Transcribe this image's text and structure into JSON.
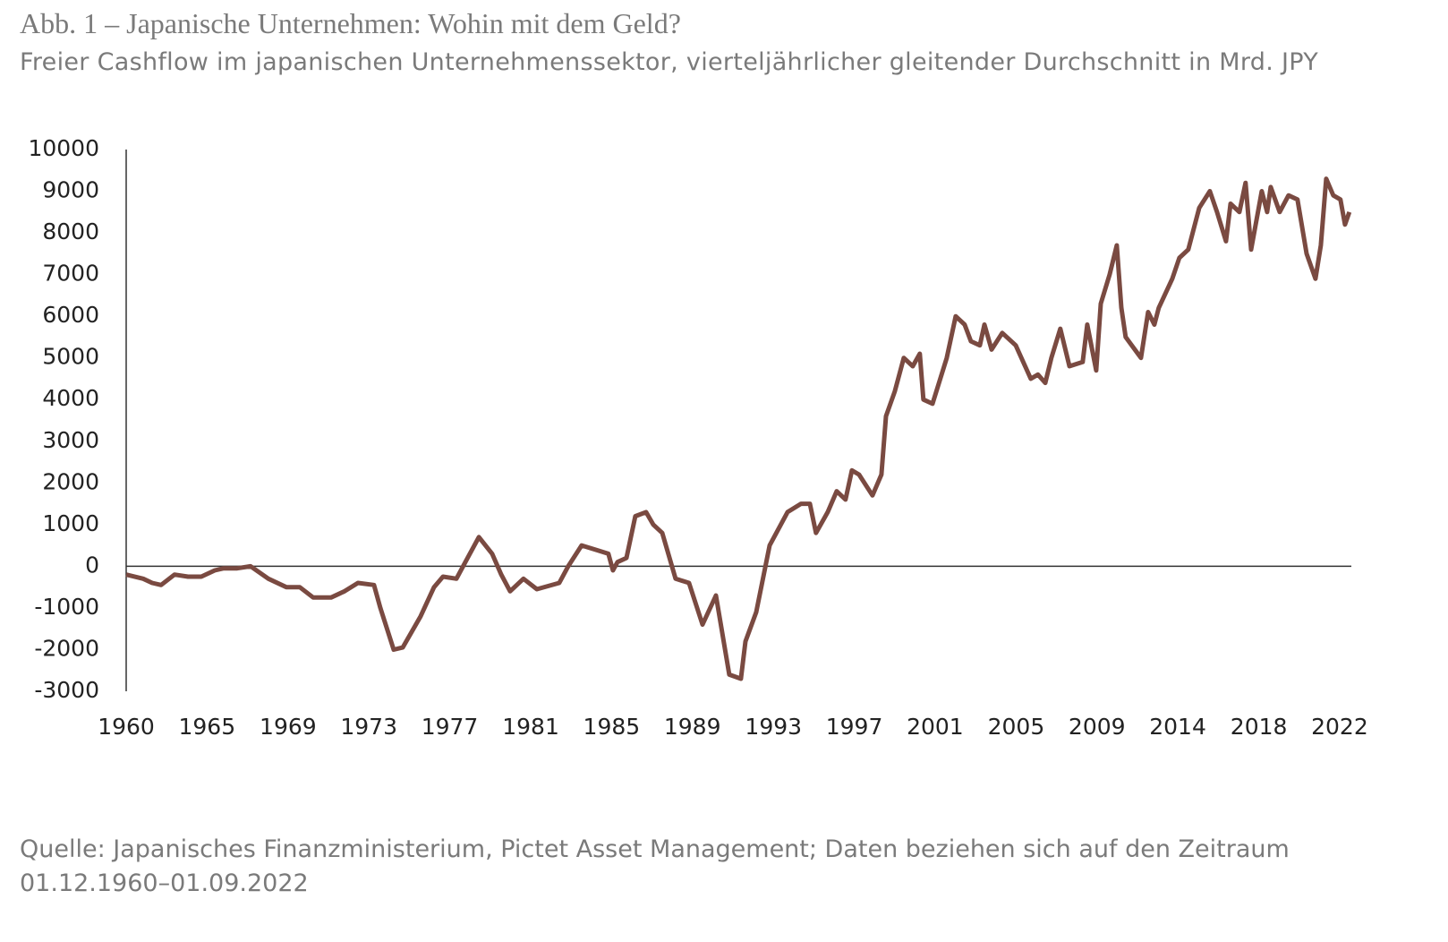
{
  "chart_data": {
    "type": "line",
    "title": "Abb. 1 – Japanische Unternehmen: Wohin mit dem Geld?",
    "subtitle": "Freier Cashflow im japanischen Unternehmenssektor, vierteljährlicher gleitender Durchschnitt in Mrd. JPY",
    "footnote": "Quelle: Japanisches Finanzministerium, Pictet Asset Management; Daten beziehen sich auf den Zeitraum 01.12.1960–01.09.2022",
    "color": "#7a4a41",
    "x": [
      1960.75,
      1961.61,
      1962.06,
      1962.51,
      1963.19,
      1963.87,
      1964.54,
      1965.22,
      1965.67,
      1966.35,
      1967.03,
      1967.93,
      1968.83,
      1969.51,
      1970.19,
      1971.09,
      1971.77,
      1972.45,
      1973.26,
      1973.58,
      1974.25,
      1974.71,
      1975.61,
      1976.29,
      1976.74,
      1977.42,
      1977.87,
      1978.55,
      1979.22,
      1979.68,
      1980.13,
      1980.8,
      1981.48,
      1982.61,
      1983.06,
      1983.74,
      1984.42,
      1985.09,
      1985.32,
      1985.55,
      1986.0,
      1986.45,
      1986.99,
      1987.35,
      1987.81,
      1988.48,
      1989.16,
      1989.84,
      1990.52,
      1991.19,
      1991.78,
      1992.01,
      1992.55,
      1993.23,
      1994.13,
      1994.81,
      1995.26,
      1995.57,
      1996.16,
      1996.61,
      1997.06,
      1997.38,
      1997.74,
      1998.42,
      1998.87,
      1999.1,
      1999.55,
      2000.0,
      2000.45,
      2000.81,
      2000.99,
      2001.45,
      2002.17,
      2002.62,
      2003.07,
      2003.39,
      2003.84,
      2004.07,
      2004.43,
      2004.97,
      2005.65,
      2006.41,
      2006.77,
      2007.14,
      2007.45,
      2007.9,
      2008.36,
      2009.03,
      2009.26,
      2009.71,
      2009.94,
      2010.39,
      2010.75,
      2010.98,
      2011.2,
      2011.97,
      2012.33,
      2012.65,
      2012.87,
      2013.55,
      2013.91,
      2014.36,
      2014.91,
      2015.45,
      2015.81,
      2016.26,
      2016.49,
      2016.94,
      2017.25,
      2017.53,
      2018.07,
      2018.34,
      2018.52,
      2018.97,
      2019.42,
      2019.87,
      2020.33,
      2020.78,
      2021.05,
      2021.32,
      2021.68,
      2022.04,
      2022.27,
      2022.49
    ],
    "values": [
      -200,
      -300,
      -400,
      -450,
      -200,
      -250,
      -250,
      -100,
      -50,
      -50,
      0,
      -300,
      -500,
      -500,
      -750,
      -750,
      -600,
      -400,
      -450,
      -1000,
      -2000,
      -1950,
      -1200,
      -500,
      -250,
      -300,
      100,
      700,
      300,
      -200,
      -600,
      -300,
      -550,
      -400,
      0,
      500,
      400,
      300,
      -100,
      100,
      200,
      1200,
      1300,
      1000,
      800,
      -300,
      -400,
      -1400,
      -700,
      -2600,
      -2700,
      -1800,
      -1100,
      500,
      1300,
      1500,
      1500,
      800,
      1300,
      1800,
      1600,
      2300,
      2200,
      1700,
      2200,
      3600,
      4200,
      5000,
      4800,
      5100,
      4000,
      3900,
      5000,
      6000,
      5800,
      5400,
      5300,
      5800,
      5200,
      5600,
      5300,
      4500,
      4600,
      4400,
      5000,
      5700,
      4800,
      4900,
      5800,
      4700,
      6300,
      7000,
      7700,
      6200,
      5500,
      5000,
      6100,
      5800,
      6200,
      6900,
      7400,
      7600,
      8600,
      9000,
      8500,
      7800,
      8700,
      8500,
      9200,
      7600,
      9000,
      8500,
      9100,
      8500,
      8900,
      8800,
      7500,
      6900,
      7700,
      9300,
      8900,
      8800,
      8200,
      8500
    ],
    "xlim": [
      1960.75,
      2022.5
    ],
    "xticks": [
      {
        "value": 1960.75,
        "label": "1960"
      },
      {
        "value": 1964.83,
        "label": "1965"
      },
      {
        "value": 1968.92,
        "label": "1969"
      },
      {
        "value": 1973.0,
        "label": "1973"
      },
      {
        "value": 1977.08,
        "label": "1977"
      },
      {
        "value": 1981.17,
        "label": "1981"
      },
      {
        "value": 1985.25,
        "label": "1985"
      },
      {
        "value": 1989.33,
        "label": "1989"
      },
      {
        "value": 1993.42,
        "label": "1993"
      },
      {
        "value": 1997.5,
        "label": "1997"
      },
      {
        "value": 2001.58,
        "label": "2001"
      },
      {
        "value": 2005.67,
        "label": "2005"
      },
      {
        "value": 2009.75,
        "label": "2009"
      },
      {
        "value": 2013.83,
        "label": "2014"
      },
      {
        "value": 2017.92,
        "label": "2018"
      },
      {
        "value": 2022.0,
        "label": "2022"
      }
    ],
    "ylim": [
      -3000,
      10000
    ],
    "yticks": [
      -3000,
      -2000,
      -1000,
      0,
      1000,
      2000,
      3000,
      4000,
      5000,
      6000,
      7000,
      8000,
      9000,
      10000
    ]
  }
}
